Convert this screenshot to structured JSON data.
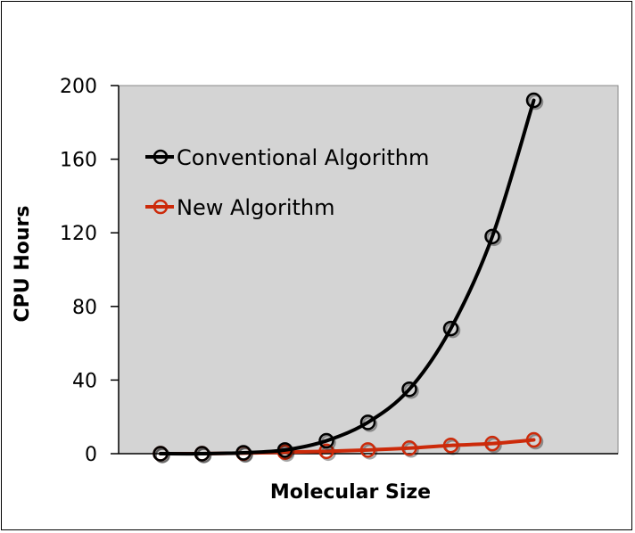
{
  "chart_data": {
    "type": "line",
    "title": "",
    "xlabel": "Molecular Size",
    "ylabel": "CPU Hours",
    "ylim": [
      0,
      200
    ],
    "yticks": [
      "0",
      "40",
      "80",
      "120",
      "160",
      "200"
    ],
    "grid": false,
    "legend_position": "top-left",
    "x": [
      1,
      2,
      3,
      4,
      5,
      6,
      7,
      8,
      9,
      10
    ],
    "series": [
      {
        "name": "Conventional Algorithm",
        "color": "#000000",
        "values": [
          0,
          0,
          0.5,
          2,
          7,
          17,
          35,
          68,
          118,
          192
        ]
      },
      {
        "name": "New Algorithm",
        "color": "#cc2a0a",
        "values": [
          0,
          0,
          0.3,
          0.8,
          1.3,
          2,
          3,
          4.5,
          5.5,
          7.5
        ]
      }
    ]
  }
}
